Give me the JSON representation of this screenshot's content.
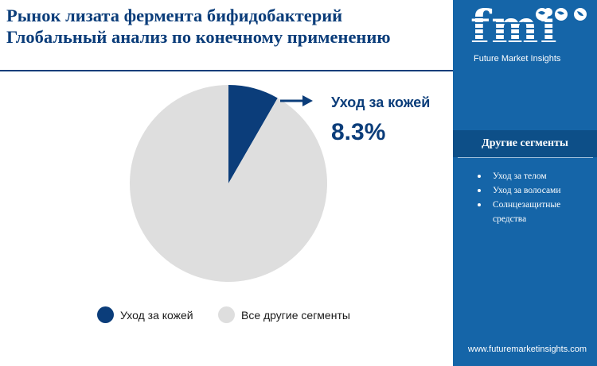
{
  "title": {
    "line1": "Рынок лизата фермента бифидобактерий",
    "line2": "Глобальный анализ по конечному применению"
  },
  "colors": {
    "brand_blue": "#0b3d7a",
    "panel_blue": "#1565a8",
    "slice_highlight": "#0b3d7a",
    "slice_other": "#dedede"
  },
  "chart_data": {
    "type": "pie",
    "slices": [
      {
        "label": "Уход за кожей",
        "value": 8.3,
        "color": "#0b3d7a"
      },
      {
        "label": "Все другие сегменты",
        "value": 91.7,
        "color": "#dedede"
      }
    ],
    "callout": {
      "label": "Уход за кожей",
      "value": "8.3%"
    },
    "legend": [
      "Уход за кожей",
      "Все другие сегменты"
    ],
    "legend_position": "bottom"
  },
  "sidepanel": {
    "logo_text": "fmi",
    "logo_tagline": "Future Market Insights",
    "other_heading": "Другие сегменты",
    "other_items": [
      "Уход за телом",
      "Уход за волосами",
      "Солнцезащитные средства"
    ],
    "website": "www.futuremarketinsights.com"
  }
}
